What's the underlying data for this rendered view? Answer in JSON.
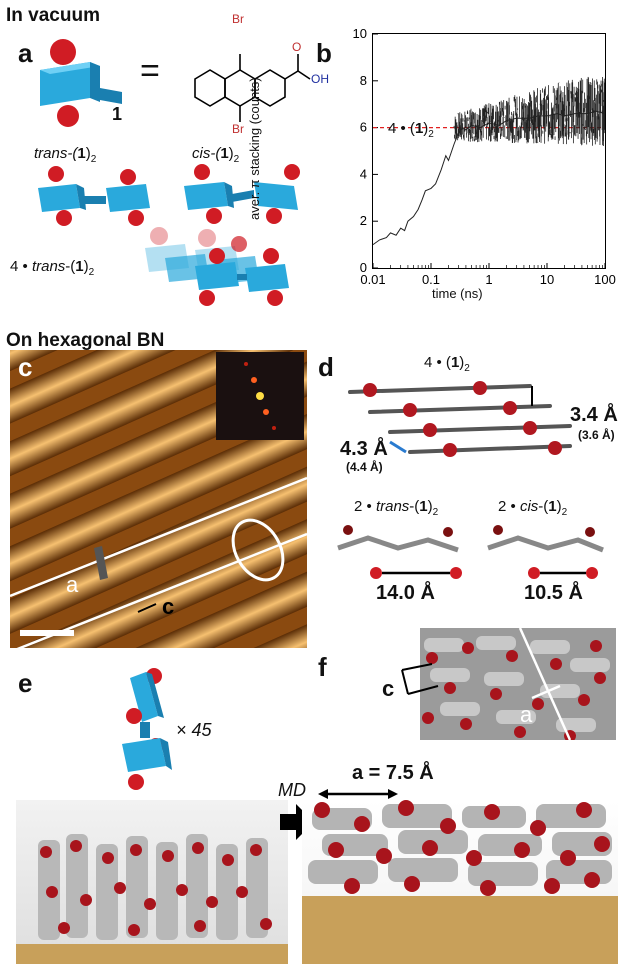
{
  "sections": {
    "vacuum": "In vacuum",
    "bn": "On hexagonal BN"
  },
  "panels": {
    "a": "a",
    "b": "b",
    "c": "c",
    "d": "d",
    "e": "e",
    "f": "f"
  },
  "panel_a": {
    "equals": "=",
    "mol_index": "1",
    "chem_top_Br": "Br",
    "chem_bottom_Br": "Br",
    "chem_OH": "OH",
    "chem_O": "O",
    "trans_pre": "trans-(",
    "trans_num": "1",
    "trans_close": ")",
    "trans_sub": "2",
    "cis_pre": "cis-(",
    "cis_num": "1",
    "cis_close": ")",
    "cis_sub": "2",
    "four_trans_pre": "4 • trans-(",
    "four_trans_num": "1",
    "four_trans_close": ")",
    "four_trans_sub": "2"
  },
  "panel_b_annot": {
    "pre": "4 • (",
    "num": "1",
    "close": ")",
    "sub": "2"
  },
  "chart_data": {
    "type": "line",
    "xlabel": "time (ns)",
    "ylabel": "aver. π stacking (counts)",
    "xscale": "log",
    "xlim": [
      0.01,
      100
    ],
    "ylim": [
      0,
      10
    ],
    "xticks": [
      "0.01",
      "0.1",
      "1",
      "10",
      "100"
    ],
    "yticks": [
      "0",
      "2",
      "4",
      "6",
      "8",
      "10"
    ],
    "reference_line": {
      "y": 6,
      "color": "#e02020",
      "style": "dashed"
    },
    "series_color": "#222222",
    "series": [
      {
        "x": [
          0.01,
          0.013,
          0.017,
          0.02,
          0.025,
          0.03,
          0.035,
          0.04,
          0.05,
          0.06,
          0.07,
          0.08,
          0.1,
          0.12,
          0.15,
          0.18,
          0.2,
          0.25,
          0.3,
          0.35,
          0.4,
          0.5,
          0.7,
          1,
          1.5,
          2,
          3,
          5,
          7,
          10,
          15,
          20,
          30,
          50,
          70,
          100
        ],
        "y": [
          1.0,
          1.2,
          1.3,
          1.5,
          1.4,
          1.7,
          1.6,
          2.0,
          2.2,
          2.5,
          2.9,
          3.3,
          3.4,
          3.6,
          4.2,
          4.8,
          4.6,
          5.3,
          5.8,
          6.0,
          5.9,
          6.1,
          6.0,
          6.2,
          6.1,
          6.3,
          6.4,
          6.4,
          6.5,
          6.5,
          6.6,
          6.5,
          6.6,
          6.6,
          6.7,
          6.6
        ]
      }
    ]
  },
  "panel_c": {
    "a_label": "a",
    "c_label": "c"
  },
  "panel_d": {
    "top_pre": "4 • (",
    "top_num": "1",
    "top_close": ")",
    "top_sub": "2",
    "spacing": "3.4 Å",
    "spacing_sim": "(3.6 Å)",
    "offset": "4.3 Å",
    "offset_sim": "(4.4 Å)",
    "trans_pre": "2 • trans-(",
    "trans_num": "1",
    "trans_close": ")",
    "trans_sub": "2",
    "cis_pre": "2 • cis-(",
    "cis_num": "1",
    "cis_close": ")",
    "cis_sub": "2",
    "trans_dist": "14.0 Å",
    "cis_dist": "10.5 Å"
  },
  "panel_e": {
    "multiplier": "× 45",
    "md": "MD",
    "a_value": "a = 7.5 Å"
  },
  "panel_f": {
    "c_label": "c",
    "a_label": "a"
  },
  "colors": {
    "cyan": "#2aa9dc",
    "cyan_dark": "#1a7fb0",
    "red": "#d01c24",
    "stm_dark": "#4a2400",
    "stm_light": "#f4b860"
  }
}
